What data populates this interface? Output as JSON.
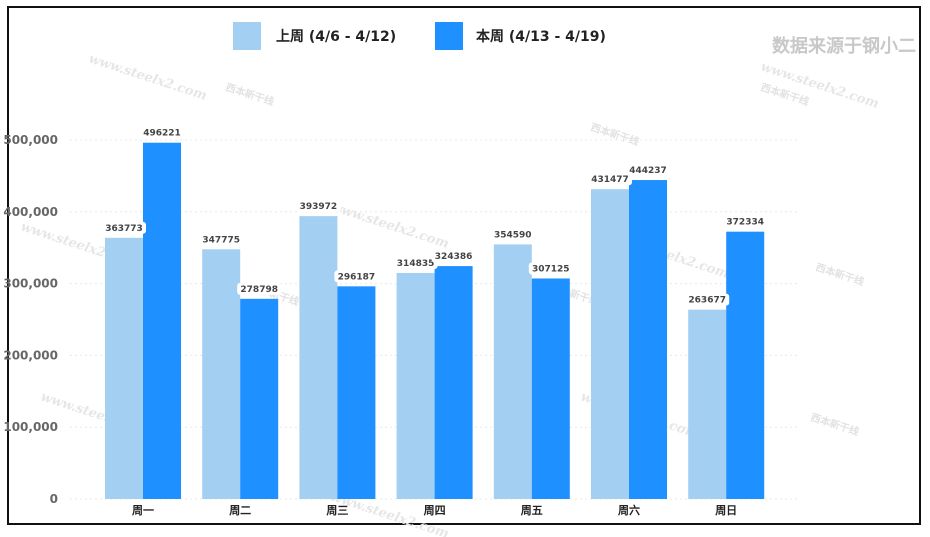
{
  "chart_data": {
    "type": "bar",
    "categories": [
      "周一",
      "周二",
      "周三",
      "周四",
      "周五",
      "周六",
      "周日"
    ],
    "series": [
      {
        "name": "上周 (4/6 - 4/12)",
        "color": "#a3cff3",
        "values": [
          363773,
          347775,
          393972,
          314835,
          354590,
          431477,
          263677
        ]
      },
      {
        "name": "本周 (4/13 - 4/19)",
        "color": "#1e90ff",
        "values": [
          496221,
          278798,
          296187,
          324386,
          307125,
          444237,
          372334
        ]
      }
    ],
    "yticks": [
      "0",
      "100,000",
      "200,000",
      "300,000",
      "400,000",
      "500,000"
    ],
    "ylim": [
      0,
      500000
    ],
    "grid": true,
    "legend_position": "top-center",
    "source": "数据来源于钢小二",
    "watermark_url": "www.steelx2.com",
    "watermark_brand": "西本新干线"
  }
}
